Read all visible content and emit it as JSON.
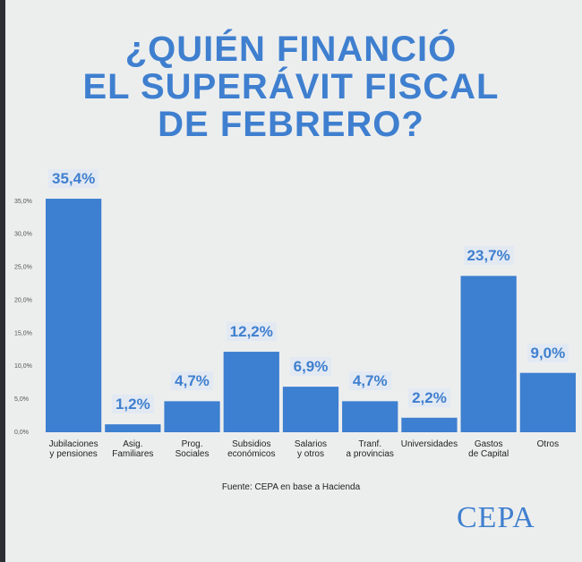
{
  "chart_data": {
    "type": "bar",
    "title": [
      "¿QUIÉN FINANCIÓ",
      "EL SUPERÁVIT FISCAL",
      "DE FEBRERO?"
    ],
    "categories": [
      "Jubilaciones\ny pensiones",
      "Asig.\nFamiliares",
      "Prog.\nSociales",
      "Subsidios\neconómicos",
      "Salarios\ny otros",
      "Tranf.\na provincias",
      "Universidades",
      "Gastos\nde Capital",
      "Otros"
    ],
    "values": [
      35.4,
      1.2,
      4.7,
      12.2,
      6.9,
      4.7,
      2.2,
      23.7,
      9.0
    ],
    "value_labels": [
      "35,4%",
      "1,2%",
      "4,7%",
      "12,2%",
      "6,9%",
      "4,7%",
      "2,2%",
      "23,7%",
      "9,0%"
    ],
    "color": "#3d7fd0",
    "ylim": [
      0,
      35
    ],
    "yticks": [
      {
        "value": 0,
        "label": "0,0%"
      },
      {
        "value": 5,
        "label": "5,0%"
      },
      {
        "value": 10,
        "label": "10,0%"
      },
      {
        "value": 15,
        "label": "15,0%"
      },
      {
        "value": 20,
        "label": "20,0%"
      },
      {
        "value": 25,
        "label": "25,0%"
      },
      {
        "value": 30,
        "label": "30,0%"
      },
      {
        "value": 35,
        "label": "35,0%"
      }
    ],
    "grid": false,
    "source": "Fuente: CEPA en base a Hacienda",
    "logo": "CEPA"
  }
}
